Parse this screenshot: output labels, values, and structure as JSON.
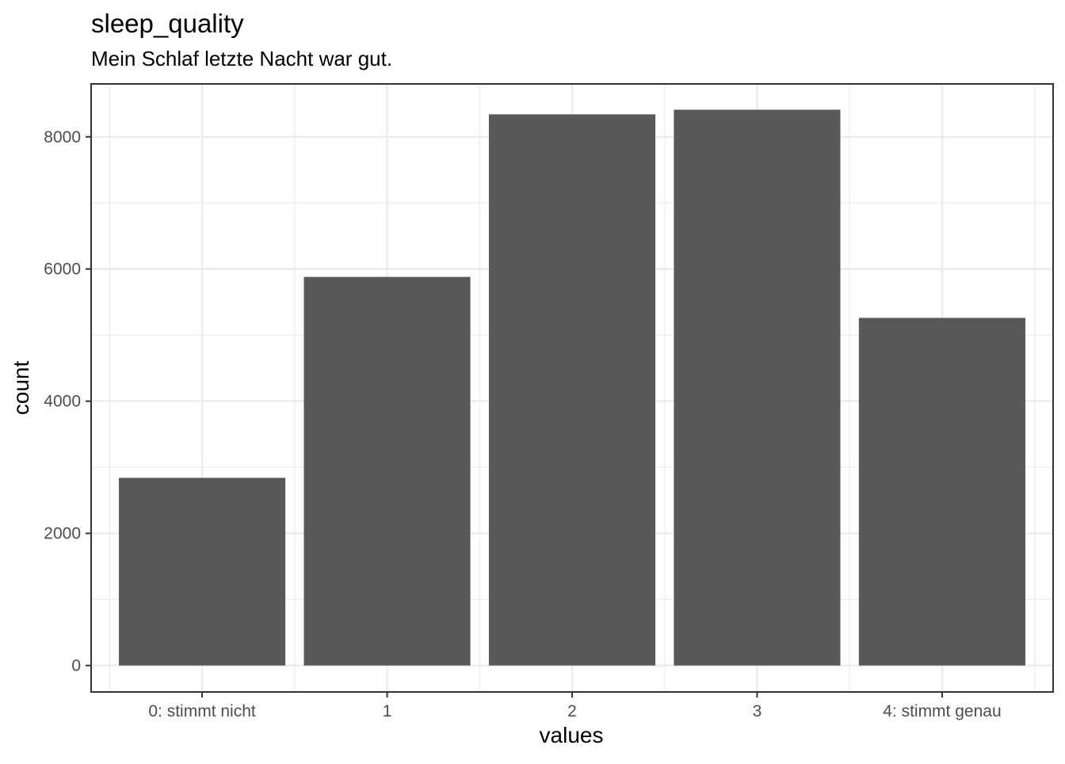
{
  "chart_data": {
    "type": "bar",
    "title": "sleep_quality",
    "subtitle": "Mein Schlaf letzte Nacht war gut.",
    "xlabel": "values",
    "ylabel": "count",
    "categories": [
      "0: stimmt nicht",
      "1",
      "2",
      "3",
      "4: stimmt genau"
    ],
    "values": [
      2840,
      5880,
      8340,
      8410,
      5260
    ],
    "ylim": [
      -400,
      8800
    ],
    "yticks": [
      0,
      2000,
      4000,
      6000,
      8000
    ],
    "ytick_labels": [
      "0",
      "2000",
      "4000",
      "6000",
      "8000"
    ],
    "grid": true,
    "bar_color": "#595959",
    "grid_color": "#ebebeb",
    "panel_border_color": "#333333"
  }
}
